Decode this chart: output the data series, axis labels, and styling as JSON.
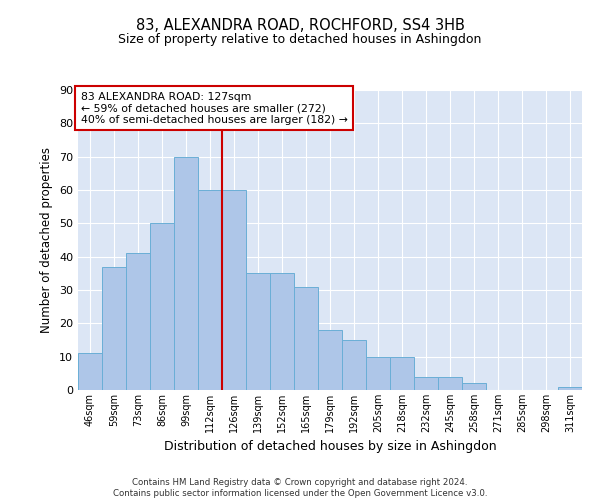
{
  "title1": "83, ALEXANDRA ROAD, ROCHFORD, SS4 3HB",
  "title2": "Size of property relative to detached houses in Ashingdon",
  "xlabel": "Distribution of detached houses by size in Ashingdon",
  "ylabel": "Number of detached properties",
  "categories": [
    "46sqm",
    "59sqm",
    "73sqm",
    "86sqm",
    "99sqm",
    "112sqm",
    "126sqm",
    "139sqm",
    "152sqm",
    "165sqm",
    "179sqm",
    "192sqm",
    "205sqm",
    "218sqm",
    "232sqm",
    "245sqm",
    "258sqm",
    "271sqm",
    "285sqm",
    "298sqm",
    "311sqm"
  ],
  "values": [
    11,
    37,
    41,
    50,
    70,
    60,
    60,
    35,
    35,
    31,
    18,
    15,
    10,
    10,
    4,
    4,
    2,
    0,
    0,
    0,
    1
  ],
  "bar_color": "#aec6e8",
  "bar_edge_color": "#6aaed6",
  "bg_color": "#dce6f5",
  "grid_color": "#ffffff",
  "annotation_text_line1": "83 ALEXANDRA ROAD: 127sqm",
  "annotation_text_line2": "← 59% of detached houses are smaller (272)",
  "annotation_text_line3": "40% of semi-detached houses are larger (182) →",
  "annotation_box_color": "#ffffff",
  "annotation_box_edge": "#cc0000",
  "vline_color": "#cc0000",
  "footer1": "Contains HM Land Registry data © Crown copyright and database right 2024.",
  "footer2": "Contains public sector information licensed under the Open Government Licence v3.0.",
  "ylim": [
    0,
    90
  ],
  "yticks": [
    0,
    10,
    20,
    30,
    40,
    50,
    60,
    70,
    80,
    90
  ],
  "vline_x": 5.5
}
